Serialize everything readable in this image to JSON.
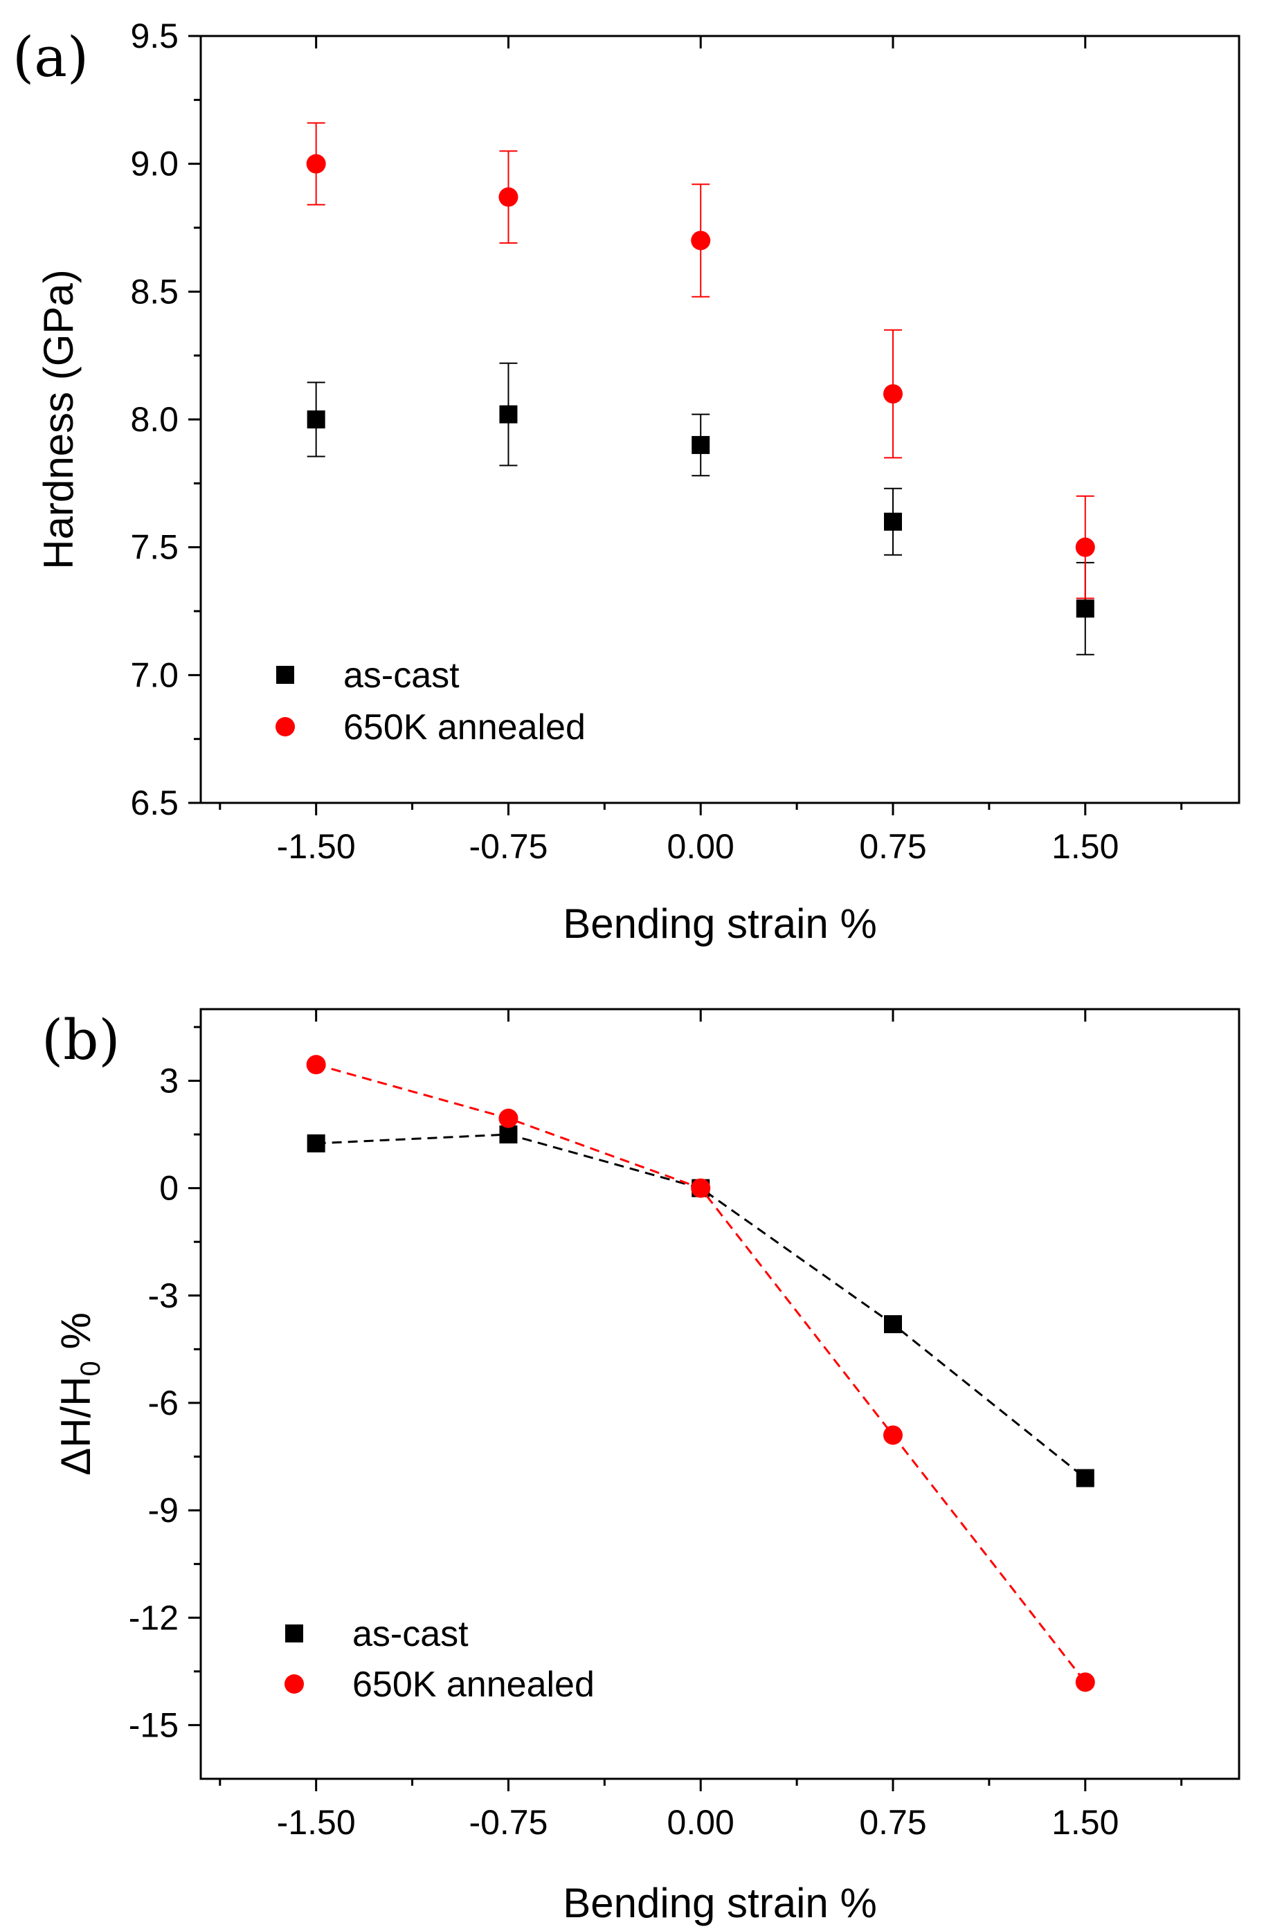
{
  "chart_data": [
    {
      "panel_label": "(a)",
      "type": "scatter",
      "xlabel": "Bending strain %",
      "ylabel": "Hardness (GPa)",
      "xlim": [
        -1.95,
        2.1
      ],
      "ylim": [
        6.5,
        9.5
      ],
      "x": [
        -1.5,
        -0.75,
        0.0,
        0.75,
        1.5
      ],
      "x_tick_labels": [
        "-1.50",
        "-0.75",
        "0.00",
        "0.75",
        "1.50"
      ],
      "y_ticks": [
        6.5,
        7.0,
        7.5,
        8.0,
        8.5,
        9.0,
        9.5
      ],
      "y_tick_labels": [
        "6.5",
        "7.0",
        "7.5",
        "8.0",
        "8.5",
        "9.0",
        "9.5"
      ],
      "legend_position": "bottom-left",
      "series": [
        {
          "name": "as-cast",
          "marker": "square",
          "color": "#000000",
          "values": [
            8.0,
            8.02,
            7.9,
            7.6,
            7.26
          ],
          "errors": [
            0.145,
            0.2,
            0.12,
            0.13,
            0.18
          ]
        },
        {
          "name": "650K annealed",
          "marker": "circle",
          "color": "#ff0000",
          "values": [
            9.0,
            8.87,
            8.7,
            8.1,
            7.5
          ],
          "errors": [
            0.16,
            0.18,
            0.22,
            0.25,
            0.2
          ]
        }
      ]
    },
    {
      "panel_label": "(b)",
      "type": "line",
      "xlabel": "Bending strain %",
      "ylabel": "ΔH/H",
      "ylabel_sub": "0",
      "ylabel_suffix": " %",
      "xlim": [
        -1.95,
        2.1
      ],
      "ylim": [
        -16.5,
        5.0
      ],
      "x": [
        -1.5,
        -0.75,
        0.0,
        0.75,
        1.5
      ],
      "x_tick_labels": [
        "-1.50",
        "-0.75",
        "0.00",
        "0.75",
        "1.50"
      ],
      "y_ticks": [
        3,
        0,
        -3,
        -6,
        -9,
        -12,
        -15
      ],
      "y_tick_labels": [
        "3",
        "0",
        "-3",
        "-6",
        "-9",
        "-12",
        "-15"
      ],
      "legend_position": "bottom-left",
      "series": [
        {
          "name": "as-cast",
          "marker": "square",
          "color": "#000000",
          "line": "dashed",
          "values": [
            1.25,
            1.5,
            0.0,
            -3.8,
            -8.1
          ]
        },
        {
          "name": "650K annealed",
          "marker": "circle",
          "color": "#ff0000",
          "line": "dashed",
          "values": [
            3.45,
            1.95,
            0.0,
            -6.9,
            -13.8
          ]
        }
      ]
    }
  ]
}
